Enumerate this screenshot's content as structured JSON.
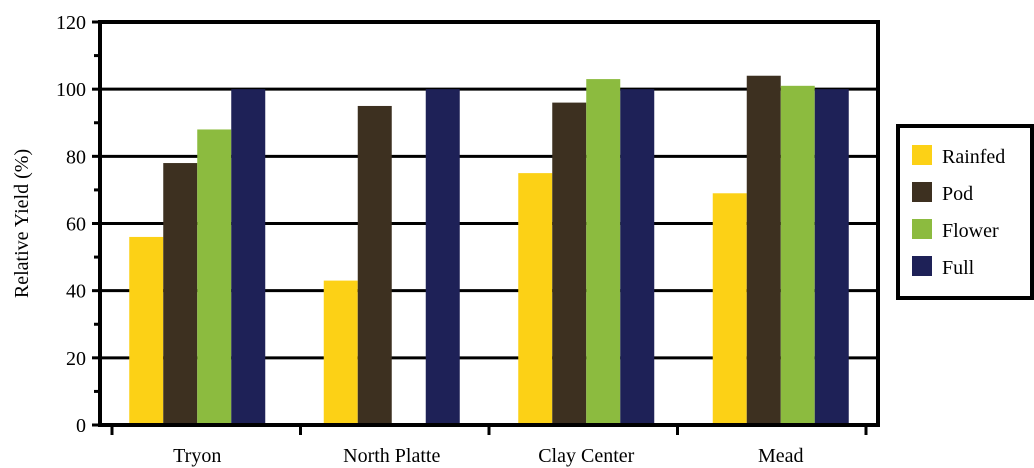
{
  "chart_data": {
    "type": "bar",
    "title": "",
    "xlabel": "",
    "ylabel": "Relative Yield (%)",
    "ylim": [
      0,
      120
    ],
    "yticks": [
      0,
      20,
      40,
      60,
      80,
      100,
      120
    ],
    "grid": "horizontal",
    "legend_position": "right",
    "categories": [
      "Tryon",
      "North Platte",
      "Clay Center",
      "Mead"
    ],
    "series": [
      {
        "name": "Rainfed",
        "color": "#FCD116",
        "values": [
          56,
          43,
          75,
          69
        ]
      },
      {
        "name": "Pod",
        "color": "#3D3020",
        "values": [
          78,
          95,
          96,
          104
        ]
      },
      {
        "name": "Flower",
        "color": "#8CBB3F",
        "values": [
          88,
          null,
          103,
          101
        ]
      },
      {
        "name": "Full",
        "color": "#1E2157",
        "values": [
          100,
          100,
          100,
          100
        ]
      }
    ]
  }
}
